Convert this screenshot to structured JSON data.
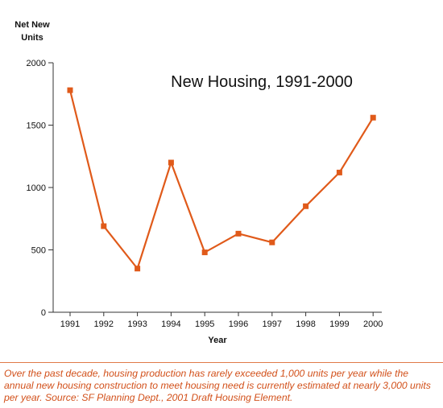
{
  "chart_data": {
    "type": "line",
    "title": "New Housing, 1991-2000",
    "ylabel": "Net New\nUnits",
    "xlabel": "Year",
    "x": [
      "1991",
      "1992",
      "1993",
      "1994",
      "1995",
      "1996",
      "1997",
      "1998",
      "1999",
      "2000"
    ],
    "series": [
      {
        "values": [
          1780,
          690,
          350,
          1200,
          480,
          630,
          560,
          850,
          1120,
          1560
        ]
      }
    ],
    "ylim": [
      0,
      2000
    ],
    "yticks": [
      0,
      500,
      1000,
      1500,
      2000
    ],
    "grid": false,
    "colors": {
      "line": "#e05a1a",
      "marker": "#e05a1a",
      "axis": "#333333"
    }
  },
  "caption": "Over the past decade, housing production has rarely exceeded 1,000 units per year while the annual new housing construction to meet housing need is currently estimated at nearly 3,000 units per year.  Source:  SF Planning Dept., 2001 Draft Housing Element."
}
